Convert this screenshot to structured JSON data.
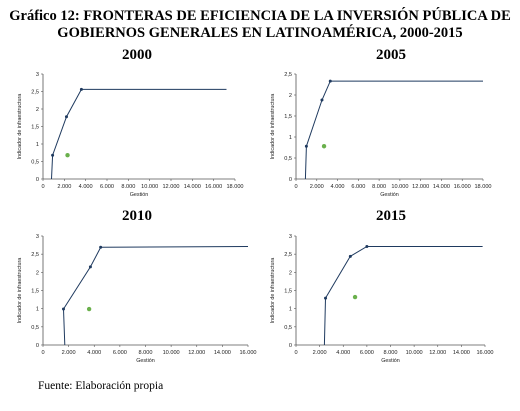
{
  "figure": {
    "title_line1": "Gráfico 12: FRONTERAS DE EFICIENCIA DE LA INVERSIÓN PÚBLICA DE",
    "title_line2": "GOBIERNOS GENERALES EN LATINOAMÉRICA, 2000-2015",
    "source": "Fuente:  Elaboración propia"
  },
  "colors": {
    "frontier": "#1f3a5f",
    "point": "#6ab04c",
    "axis": "#555555"
  },
  "chart_data": [
    {
      "type": "line",
      "title": "2000",
      "xlabel": "Gestión",
      "ylabel": "Indicador de infraestructura",
      "xlim": [
        0,
        18000
      ],
      "ylim": [
        0,
        3
      ],
      "x_ticks": [
        0,
        2000,
        4000,
        6000,
        8000,
        10000,
        12000,
        14000,
        16000,
        18000
      ],
      "x_tick_labels": [
        "0",
        "2.000",
        "4.000",
        "6.000",
        "8.000",
        "10.000",
        "12.000",
        "14.000",
        "16.000",
        "18.000"
      ],
      "y_ticks": [
        0,
        0.5,
        1,
        1.5,
        2,
        2.5,
        3
      ],
      "y_tick_labels": [
        "0",
        "0,5",
        "1",
        "1,5",
        "2",
        "2,5",
        "3"
      ],
      "frontier": [
        [
          800,
          0
        ],
        [
          900,
          0.68
        ],
        [
          2200,
          1.78
        ],
        [
          3600,
          2.56
        ],
        [
          17200,
          2.56
        ]
      ],
      "frontier_vertices": [
        [
          900,
          0.68
        ],
        [
          2200,
          1.78
        ],
        [
          3600,
          2.56
        ]
      ],
      "observed": [
        [
          2300,
          0.68
        ]
      ]
    },
    {
      "type": "line",
      "title": "2005",
      "xlabel": "Gestión",
      "ylabel": "Indicador de infraestructura",
      "xlim": [
        0,
        18000
      ],
      "ylim": [
        0,
        2.5
      ],
      "x_ticks": [
        0,
        2000,
        4000,
        6000,
        8000,
        10000,
        12000,
        14000,
        16000,
        18000
      ],
      "x_tick_labels": [
        "0",
        "2.000",
        "4.000",
        "6.000",
        "8.000",
        "10.000",
        "12.000",
        "14.000",
        "16.000",
        "18.000"
      ],
      "y_ticks": [
        0,
        0.5,
        1,
        1.5,
        2,
        2.5
      ],
      "y_tick_labels": [
        "0",
        "0,5",
        "1",
        "1,5",
        "2",
        "2,5"
      ],
      "frontier": [
        [
          900,
          0
        ],
        [
          1000,
          0.78
        ],
        [
          2500,
          1.88
        ],
        [
          3300,
          2.33
        ],
        [
          18000,
          2.33
        ]
      ],
      "frontier_vertices": [
        [
          1000,
          0.78
        ],
        [
          2500,
          1.88
        ],
        [
          3300,
          2.33
        ]
      ],
      "observed": [
        [
          2700,
          0.78
        ]
      ]
    },
    {
      "type": "line",
      "title": "2010",
      "xlabel": "Gestión",
      "ylabel": "Indicador de infraestructura",
      "xlim": [
        0,
        16000
      ],
      "ylim": [
        0,
        3
      ],
      "x_ticks": [
        0,
        2000,
        4000,
        6000,
        8000,
        10000,
        12000,
        14000,
        16000
      ],
      "x_tick_labels": [
        "0",
        "2.000",
        "4.000",
        "6.000",
        "8.000",
        "10.000",
        "12.000",
        "14.000",
        "16.000"
      ],
      "y_ticks": [
        0,
        0.5,
        1,
        1.5,
        2,
        2.5,
        3
      ],
      "y_tick_labels": [
        "0",
        "0,5",
        "1",
        "1,5",
        "2",
        "2,5",
        "3"
      ],
      "frontier": [
        [
          1700,
          0
        ],
        [
          1600,
          0.99
        ],
        [
          3700,
          2.15
        ],
        [
          4500,
          2.69
        ],
        [
          16000,
          2.71
        ]
      ],
      "frontier_vertices": [
        [
          1600,
          0.99
        ],
        [
          3700,
          2.15
        ],
        [
          4500,
          2.69
        ]
      ],
      "observed": [
        [
          3600,
          0.99
        ]
      ]
    },
    {
      "type": "line",
      "title": "2015",
      "xlabel": "Gestión",
      "ylabel": "Indicador de infraestructura",
      "xlim": [
        0,
        16000
      ],
      "ylim": [
        0,
        3
      ],
      "x_ticks": [
        0,
        2000,
        4000,
        6000,
        8000,
        10000,
        12000,
        14000,
        16000
      ],
      "x_tick_labels": [
        "0",
        "2.000",
        "4.000",
        "6.000",
        "8.000",
        "10.000",
        "12.000",
        "14.000",
        "16.000"
      ],
      "y_ticks": [
        0,
        0.5,
        1,
        1.5,
        2,
        2.5,
        3
      ],
      "y_tick_labels": [
        "0",
        "0,5",
        "1",
        "1,5",
        "2",
        "2,5",
        "3"
      ],
      "frontier": [
        [
          2400,
          0
        ],
        [
          2500,
          1.29
        ],
        [
          4600,
          2.44
        ],
        [
          6000,
          2.71
        ],
        [
          15800,
          2.71
        ]
      ],
      "frontier_vertices": [
        [
          2500,
          1.29
        ],
        [
          4600,
          2.44
        ],
        [
          6000,
          2.71
        ]
      ],
      "observed": [
        [
          5000,
          1.32
        ]
      ]
    }
  ]
}
